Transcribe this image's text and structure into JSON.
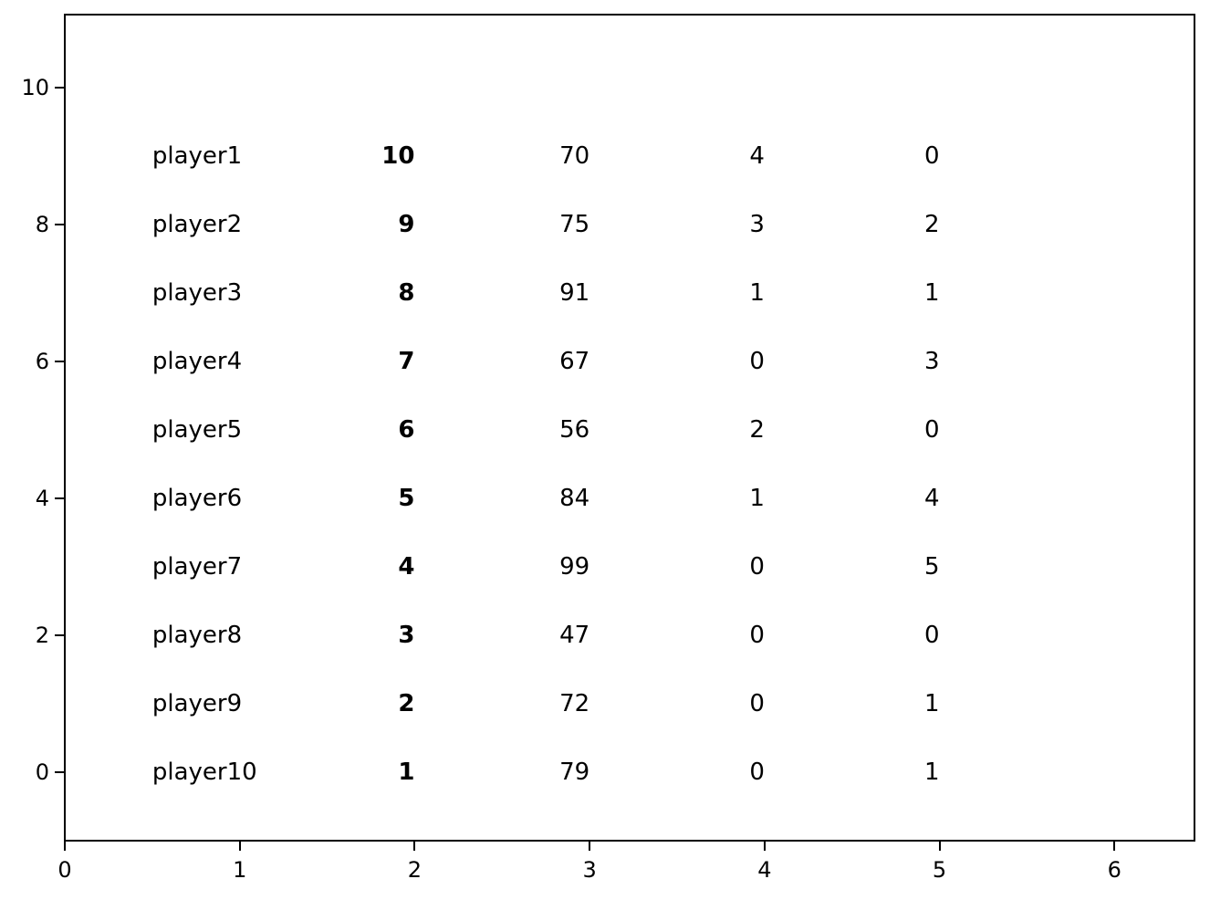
{
  "figure": {
    "background_color": "#ffffff",
    "text_color": "#000000",
    "spine_color": "#000000"
  },
  "chart_data": {
    "type": "table",
    "title": "",
    "xlabel": "",
    "ylabel": "",
    "grid": false,
    "legend": false,
    "xlim": [
      0,
      6.45
    ],
    "ylim": [
      -1.0,
      11.1
    ],
    "x_ticks": [
      "0",
      "1",
      "2",
      "3",
      "4",
      "5",
      "6"
    ],
    "x_tick_values": [
      0,
      1,
      2,
      3,
      4,
      5,
      6
    ],
    "y_ticks": [
      "0",
      "2",
      "4",
      "6",
      "8",
      "10"
    ],
    "y_tick_values": [
      0,
      2,
      4,
      6,
      8,
      10
    ],
    "columns": {
      "x": [
        0.5,
        2,
        3,
        4,
        5
      ],
      "align": [
        "left",
        "right",
        "right",
        "right",
        "right"
      ],
      "bold": [
        false,
        true,
        false,
        false,
        false
      ]
    },
    "rows": [
      {
        "y": 9,
        "cells": [
          "player1",
          "10",
          "70",
          "4",
          "0"
        ]
      },
      {
        "y": 8,
        "cells": [
          "player2",
          "9",
          "75",
          "3",
          "2"
        ]
      },
      {
        "y": 7,
        "cells": [
          "player3",
          "8",
          "91",
          "1",
          "1"
        ]
      },
      {
        "y": 6,
        "cells": [
          "player4",
          "7",
          "67",
          "0",
          "3"
        ]
      },
      {
        "y": 5,
        "cells": [
          "player5",
          "6",
          "56",
          "2",
          "0"
        ]
      },
      {
        "y": 4,
        "cells": [
          "player6",
          "5",
          "84",
          "1",
          "4"
        ]
      },
      {
        "y": 3,
        "cells": [
          "player7",
          "4",
          "99",
          "0",
          "5"
        ]
      },
      {
        "y": 2,
        "cells": [
          "player8",
          "3",
          "47",
          "0",
          "0"
        ]
      },
      {
        "y": 1,
        "cells": [
          "player9",
          "2",
          "72",
          "0",
          "1"
        ]
      },
      {
        "y": 0,
        "cells": [
          "player10",
          "1",
          "79",
          "0",
          "1"
        ]
      }
    ]
  }
}
